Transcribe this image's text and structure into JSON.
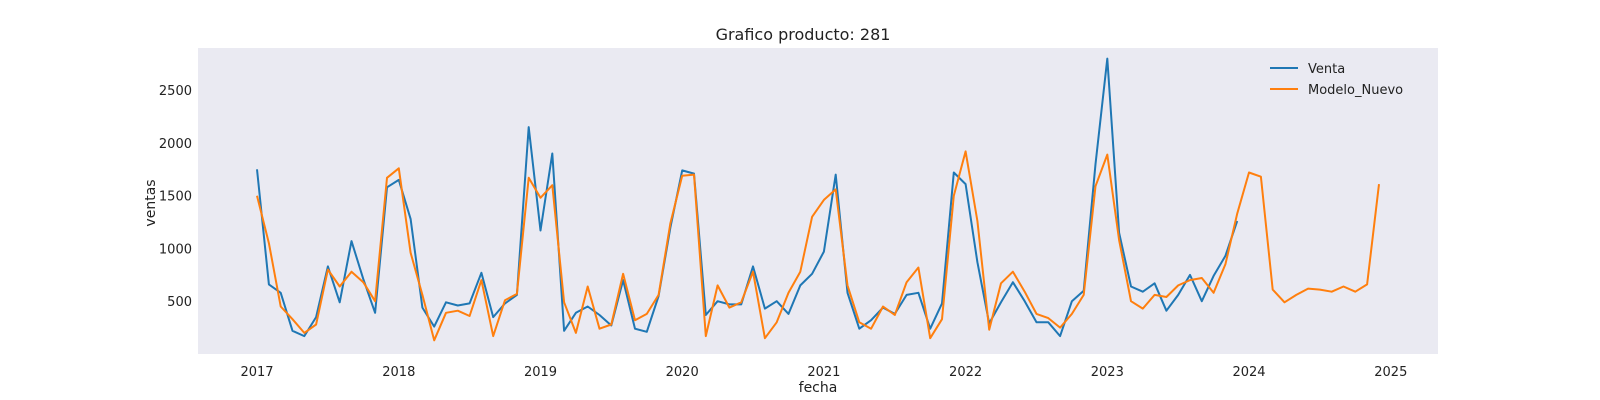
{
  "chart_data": {
    "type": "line",
    "title": "Grafico producto: 281",
    "xlabel": "fecha",
    "ylabel": "ventas",
    "x_ticks": [
      "2017",
      "2018",
      "2019",
      "2020",
      "2021",
      "2022",
      "2023",
      "2024",
      "2025"
    ],
    "y_ticks": [
      500,
      1000,
      1500,
      2000,
      2500
    ],
    "xlim": [
      "2016-08",
      "2025-05"
    ],
    "ylim": [
      0,
      2900
    ],
    "grid": false,
    "background": "#eaeaf2",
    "legend_position": "top-right",
    "series": [
      {
        "name": "Venta",
        "color": "#1f77b4",
        "x": [
          "2017-01",
          "2017-02",
          "2017-03",
          "2017-04",
          "2017-05",
          "2017-06",
          "2017-07",
          "2017-08",
          "2017-09",
          "2017-10",
          "2017-11",
          "2017-12",
          "2018-01",
          "2018-02",
          "2018-03",
          "2018-04",
          "2018-05",
          "2018-06",
          "2018-07",
          "2018-08",
          "2018-09",
          "2018-10",
          "2018-11",
          "2018-12",
          "2019-01",
          "2019-02",
          "2019-03",
          "2019-04",
          "2019-05",
          "2019-06",
          "2019-07",
          "2019-08",
          "2019-09",
          "2019-10",
          "2019-11",
          "2019-12",
          "2020-01",
          "2020-02",
          "2020-03",
          "2020-04",
          "2020-05",
          "2020-06",
          "2020-07",
          "2020-08",
          "2020-09",
          "2020-10",
          "2020-11",
          "2020-12",
          "2021-01",
          "2021-02",
          "2021-03",
          "2021-04",
          "2021-05",
          "2021-06",
          "2021-07",
          "2021-08",
          "2021-09",
          "2021-10",
          "2021-11",
          "2021-12",
          "2022-01",
          "2022-02",
          "2022-03",
          "2022-04",
          "2022-05",
          "2022-06",
          "2022-07",
          "2022-08",
          "2022-09",
          "2022-10",
          "2022-11",
          "2022-12",
          "2023-01",
          "2023-02",
          "2023-03",
          "2023-04",
          "2023-05",
          "2023-06",
          "2023-07",
          "2023-08",
          "2023-09",
          "2023-10",
          "2023-11",
          "2023-12"
        ],
        "values": [
          1750,
          660,
          580,
          220,
          170,
          350,
          830,
          490,
          1070,
          710,
          390,
          1580,
          1650,
          1280,
          440,
          260,
          490,
          460,
          480,
          770,
          350,
          480,
          560,
          2150,
          1170,
          1900,
          220,
          390,
          450,
          370,
          270,
          700,
          240,
          210,
          550,
          1200,
          1740,
          1710,
          370,
          500,
          470,
          470,
          830,
          430,
          500,
          380,
          650,
          760,
          970,
          1700,
          580,
          240,
          320,
          440,
          380,
          560,
          580,
          240,
          480,
          1720,
          1610,
          870,
          290,
          490,
          680,
          500,
          300,
          300,
          170,
          500,
          600,
          1800,
          2800,
          1150,
          640,
          590,
          670,
          410,
          560,
          750,
          500,
          740,
          930,
          1260
        ]
      },
      {
        "name": "Modelo_Nuevo",
        "color": "#ff7f0e",
        "x": [
          "2017-01",
          "2017-02",
          "2017-03",
          "2017-04",
          "2017-05",
          "2017-06",
          "2017-07",
          "2017-08",
          "2017-09",
          "2017-10",
          "2017-11",
          "2017-12",
          "2018-01",
          "2018-02",
          "2018-03",
          "2018-04",
          "2018-05",
          "2018-06",
          "2018-07",
          "2018-08",
          "2018-09",
          "2018-10",
          "2018-11",
          "2018-12",
          "2019-01",
          "2019-02",
          "2019-03",
          "2019-04",
          "2019-05",
          "2019-06",
          "2019-07",
          "2019-08",
          "2019-09",
          "2019-10",
          "2019-11",
          "2019-12",
          "2020-01",
          "2020-02",
          "2020-03",
          "2020-04",
          "2020-05",
          "2020-06",
          "2020-07",
          "2020-08",
          "2020-09",
          "2020-10",
          "2020-11",
          "2020-12",
          "2021-01",
          "2021-02",
          "2021-03",
          "2021-04",
          "2021-05",
          "2021-06",
          "2021-07",
          "2021-08",
          "2021-09",
          "2021-10",
          "2021-11",
          "2021-12",
          "2022-01",
          "2022-02",
          "2022-03",
          "2022-04",
          "2022-05",
          "2022-06",
          "2022-07",
          "2022-08",
          "2022-09",
          "2022-10",
          "2022-11",
          "2022-12",
          "2023-01",
          "2023-02",
          "2023-03",
          "2023-04",
          "2023-05",
          "2023-06",
          "2023-07",
          "2023-08",
          "2023-09",
          "2023-10",
          "2023-11",
          "2023-12",
          "2024-01",
          "2024-02",
          "2024-03",
          "2024-04",
          "2024-05",
          "2024-06",
          "2024-07",
          "2024-08",
          "2024-09",
          "2024-10",
          "2024-11",
          "2024-12"
        ],
        "values": [
          1500,
          1050,
          450,
          330,
          200,
          280,
          800,
          640,
          780,
          680,
          500,
          1670,
          1760,
          960,
          560,
          130,
          390,
          410,
          360,
          700,
          170,
          510,
          570,
          1670,
          1480,
          1600,
          490,
          200,
          640,
          240,
          280,
          760,
          320,
          380,
          560,
          1240,
          1690,
          1700,
          170,
          650,
          440,
          490,
          780,
          150,
          300,
          580,
          780,
          1300,
          1460,
          1560,
          650,
          300,
          240,
          450,
          370,
          680,
          820,
          150,
          330,
          1500,
          1920,
          1260,
          230,
          670,
          780,
          590,
          380,
          340,
          250,
          380,
          560,
          1590,
          1890,
          1080,
          500,
          430,
          560,
          540,
          650,
          700,
          720,
          580,
          850,
          1330,
          1720,
          1680,
          610,
          490,
          560,
          620,
          610,
          590,
          640,
          590,
          660,
          1610
        ]
      }
    ]
  }
}
